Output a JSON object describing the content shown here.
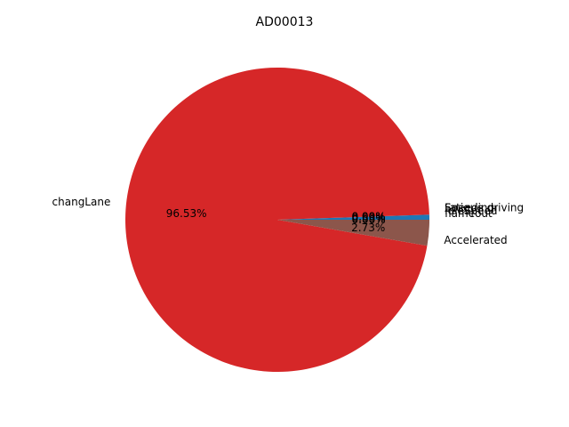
{
  "chart_data": {
    "type": "pie",
    "title": "AD00013",
    "slices": [
      {
        "label": "IdleSpeed",
        "value": 0.53,
        "pct_label": "0.53%",
        "color": "#1f77b4"
      },
      {
        "label": "Speeding",
        "value": 0.0,
        "pct_label": "0.00%",
        "color": "#ff7f0e"
      },
      {
        "label": "Fatigue driving",
        "value": 0.0,
        "pct_label": "0.00%",
        "color": "#2ca02c"
      },
      {
        "label": "changLane",
        "value": 96.53,
        "pct_label": "96.53%",
        "color": "#d62728"
      },
      {
        "label": "Accelerated",
        "value": 2.73,
        "pct_label": "2.73%",
        "color": "#8c564b"
      },
      {
        "label": "flameout",
        "value": 0.0,
        "pct_label": "0.00%",
        "color": "#e377c2"
      }
    ]
  }
}
